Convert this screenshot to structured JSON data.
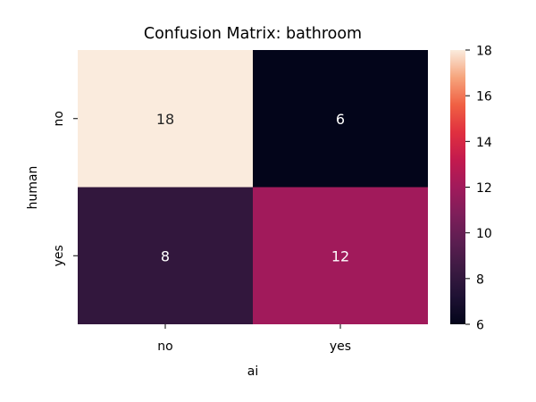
{
  "chart_data": {
    "type": "heatmap",
    "title": "Confusion Matrix: bathroom",
    "xlabel": "ai",
    "ylabel": "human",
    "x_categories": [
      "no",
      "yes"
    ],
    "y_categories": [
      "no",
      "yes"
    ],
    "values": [
      [
        18,
        6
      ],
      [
        8,
        12
      ]
    ],
    "colorbar": {
      "min": 6,
      "max": 18,
      "ticks": [
        6,
        8,
        10,
        12,
        14,
        16,
        18
      ],
      "tick_labels": [
        "6",
        "8",
        "10",
        "12",
        "14",
        "16",
        "18"
      ]
    },
    "colormap": "rocket",
    "annotation_colors": {
      "light_cell": "#262626",
      "dark_cell": "#ffffff"
    }
  }
}
